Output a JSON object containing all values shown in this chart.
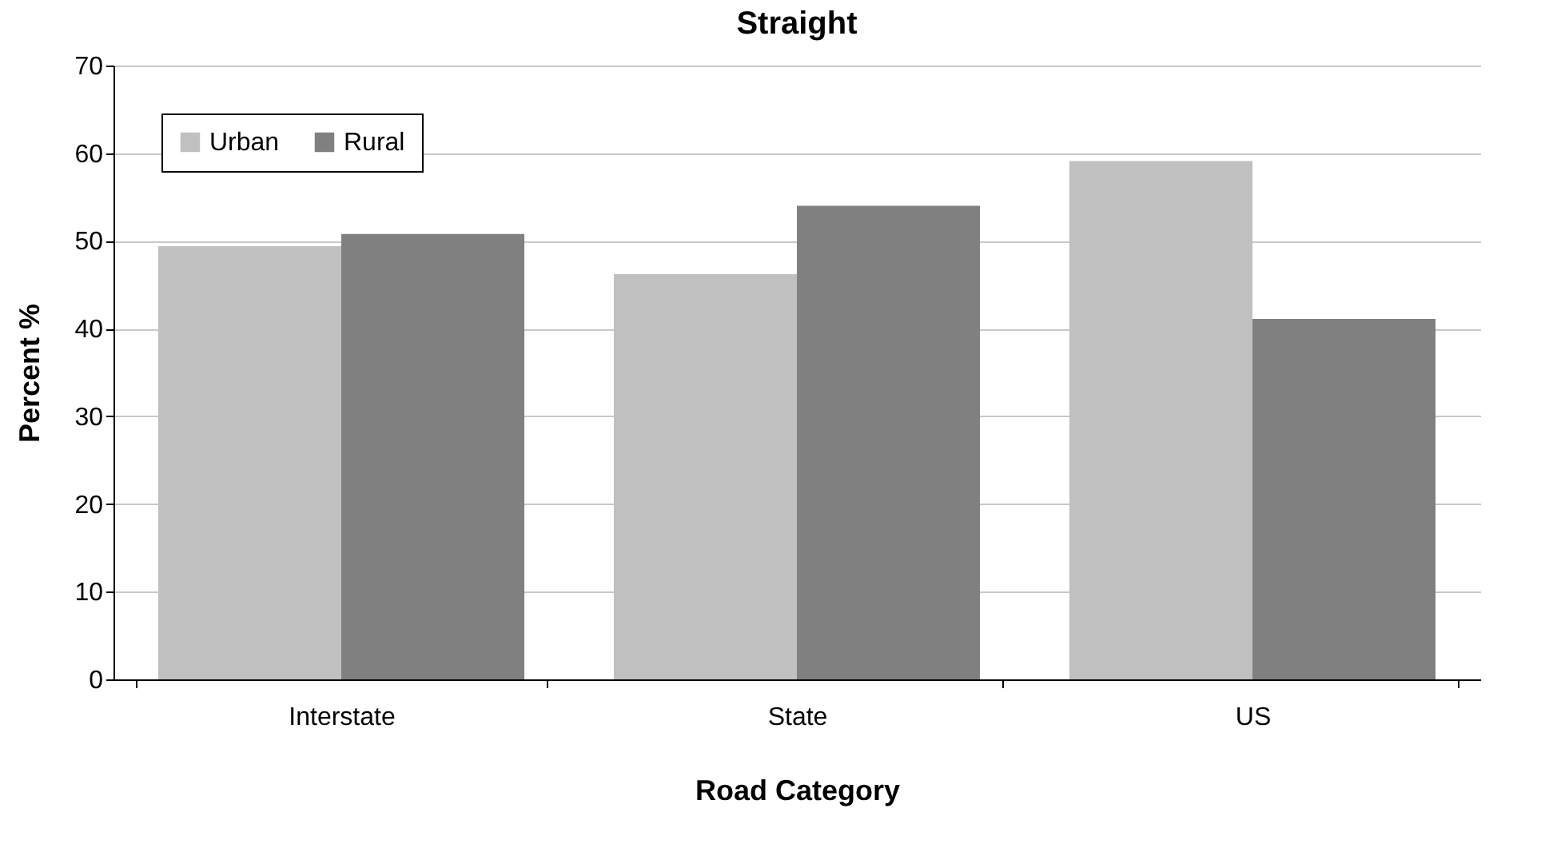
{
  "chart_data": {
    "type": "bar",
    "title": "Straight",
    "xlabel": "Road Category",
    "ylabel": "Percent %",
    "categories": [
      "Interstate",
      "State",
      "US"
    ],
    "series": [
      {
        "name": "Urban",
        "color": "#c0c0c0",
        "values": [
          49.4,
          46.2,
          59.1
        ]
      },
      {
        "name": "Rural",
        "color": "#808080",
        "values": [
          50.8,
          54.0,
          41.1
        ]
      }
    ],
    "ylim": [
      0,
      70
    ],
    "yticks": [
      0,
      10,
      20,
      30,
      40,
      50,
      60,
      70
    ],
    "grid": "y",
    "legend": "top left"
  }
}
